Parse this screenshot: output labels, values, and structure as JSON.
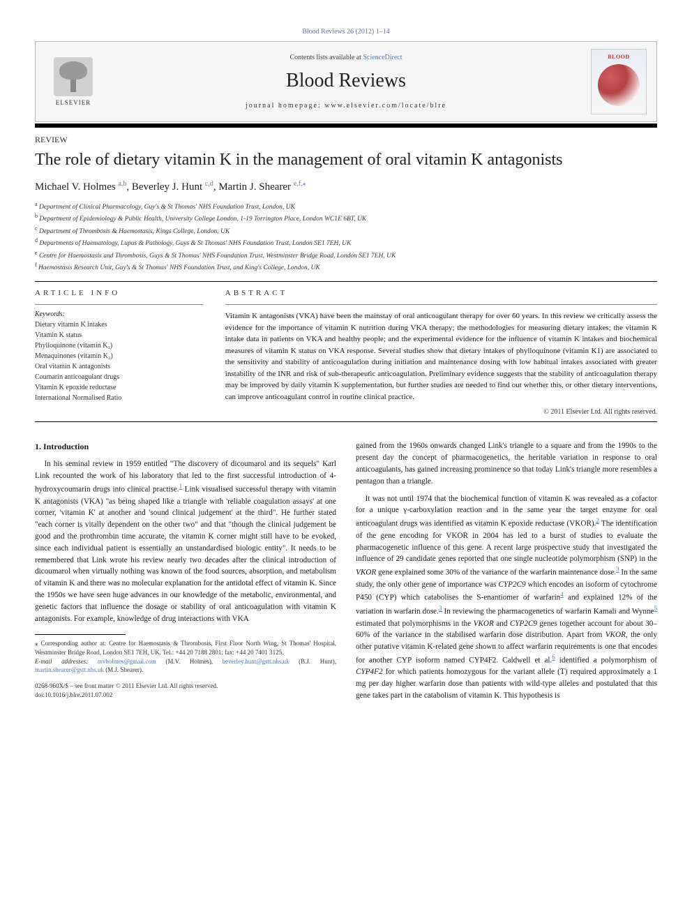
{
  "citation": "Blood Reviews 26 (2012) 1–14",
  "masthead": {
    "contents_prefix": "Contents lists available at ",
    "contents_link_text": "ScienceDirect",
    "journal_title": "Blood Reviews",
    "homepage_label": "journal homepage: www.elsevier.com/locate/blre",
    "publisher_label": "ELSEVIER",
    "cover_text": "BLOOD"
  },
  "article": {
    "type": "REVIEW",
    "title": "The role of dietary vitamin K in the management of oral vitamin K antagonists",
    "authors_html_parts": {
      "a1_name": "Michael V. Holmes",
      "a1_sup": "a,b",
      "a2_name": "Beverley J. Hunt",
      "a2_sup": "c,d",
      "a3_name": "Martin J. Shearer",
      "a3_sup": "e,f,",
      "a3_star": "⁎"
    },
    "affiliations": [
      {
        "key": "a",
        "text": "Department of Clinical Pharmacology, Guy's & St Thomas' NHS Foundation Trust, London, UK"
      },
      {
        "key": "b",
        "text": "Department of Epidemiology & Public Health, University College London, 1-19 Torrington Place, London WC1E 6BT, UK"
      },
      {
        "key": "c",
        "text": "Department of Thrombosis & Haemostasis, Kings College, London, UK"
      },
      {
        "key": "d",
        "text": "Departments of Haematology, Lupus & Pathology, Guys & St Thomas' NHS Foundation Trust, London SE1 7EH, UK"
      },
      {
        "key": "e",
        "text": "Centre for Haemostasis and Thrombosis, Guys & St Thomas' NHS Foundation Trust, Westminster Bridge Road, London SE1 7EH, UK"
      },
      {
        "key": "f",
        "text": "Haemostasis Research Unit, Guy's & St Thomas' NHS Foundation Trust, and King's College, London, UK"
      }
    ]
  },
  "info": {
    "heading": "ARTICLE INFO",
    "keywords_label": "Keywords:",
    "keywords": [
      "Dietary vitamin K intakes",
      "Vitamin K status",
      "Phylloquinone (vitamin K₁)",
      "Menaquinones (vitamin K₂)",
      "Oral vitamin K antagonists",
      "Coumarin anticoagulant drugs",
      "Vitamin K epoxide reductase",
      "International Normalised Ratio"
    ]
  },
  "abstract": {
    "heading": "ABSTRACT",
    "text": "Vitamin K antagonists (VKA) have been the mainstay of oral anticoagulant therapy for over 60 years. In this review we critically assess the evidence for the importance of vitamin K nutrition during VKA therapy; the methodologies for measuring dietary intakes; the vitamin K intake data in patients on VKA and healthy people; and the experimental evidence for the influence of vitamin K intakes and biochemical measures of vitamin K status on VKA response. Several studies show that dietary intakes of phylloquinone (vitamin K1) are associated to the sensitivity and stability of anticoagulation during initiation and maintenance dosing with low habitual intakes associated with greater instability of the INR and risk of sub-therapeutic anticoagulation. Preliminary evidence suggests that the stability of anticoagulation therapy may be improved by daily vitamin K supplementation, but further studies are needed to find out whether this, or other dietary interventions, can improve anticoagulant control in routine clinical practice.",
    "copyright": "© 2011 Elsevier Ltd. All rights reserved."
  },
  "body": {
    "section_number": "1.",
    "section_title": "Introduction",
    "p1": "In his seminal review in 1959 entitled \"The discovery of dicoumarol and its sequels\" Karl Link recounted the work of his laboratory that led to the first successful introduction of 4-hydroxycoumarin drugs into clinical practise.",
    "p1_ref": "1",
    "p1_cont": " Link visualised successful therapy with vitamin K antagonists (VKA) \"as being shaped like a triangle with 'reliable coagulation assays' at one corner, 'vitamin K' at another and 'sound clinical judgement' at the third\". He further stated \"each corner is vitally dependent on the other two\" and that \"though the clinical judgement be good and the prothrombin time accurate, the vitamin K corner might still have to be evoked, since each individual patient is essentially an unstandardised biologic entity\". It needs to be remembered that Link wrote his review nearly two decades after the clinical introduction of dicoumarol when virtually nothing was known of the food sources, absorption, and metabolism of vitamin K and there was no molecular explanation for the antidotal effect of vitamin K. Since the 1950s we have seen huge advances in our knowledge of the metabolic, environmental, and genetic factors that influence the dosage or stability of oral anticoagulation with vitamin K antagonists. For example, knowledge of drug interactions with VKA",
    "p2": "gained from the 1960s onwards changed Link's triangle to a square and from the 1990s to the present day the concept of pharmacogenetics, the heritable variation in response to oral anticoagulants, has gained increasing prominence so that today Link's triangle more resembles a pentagon than a triangle.",
    "p3a": "It was not until 1974 that the biochemical function of vitamin K was revealed as a cofactor for a unique γ-carboxylation reaction and in the same year the target enzyme for oral anticoagulant drugs was identified as vitamin K epoxide reductase (VKOR).",
    "p3_ref2": "2",
    "p3b": " The identification of the gene encoding for VKOR in 2004 has led to a burst of studies to evaluate the pharmacogenetic influence of this gene. A recent large prospective study that investigated the influence of 29 candidate genes reported that one single nucleotide polymorphism (SNP) in the ",
    "gene_vkor": "VKOR",
    "p3c": " gene explained some 30% of the variance of the warfarin maintenance dose.",
    "p3_ref3a": "3",
    "p3d": " In the same study, the only other gene of importance was ",
    "gene_cyp2c9": "CYP2C9",
    "p3e": " which encodes an isoform of cytochrome P450 (CYP) which catabolises the S-enantiomer of warfarin",
    "p3_ref4": "4",
    "p3f": " and explained 12% of the variation in warfarin dose.",
    "p3_ref3b": "3",
    "p3g": " In reviewing the pharmacogenetics of warfarin Kamali and Wynne",
    "p3_ref5": "5",
    "p3h": " estimated that polymorphisms in the ",
    "p3i": " and ",
    "p3j": " genes together account for about 30–60% of the variance in the stabilised warfarin dose distribution. Apart from ",
    "p3k": ", the only other putative vitamin K-related gene shown to affect warfarin requirements is one that encodes for another CYP isoform named CYP4F2. Caldwell et al.",
    "p3_ref6": "6",
    "p3l": " identified a polymorphism of ",
    "gene_cyp4f2": "CYP4F2",
    "p3m": " for which patients homozygous for the variant allele (T) required approximately a 1 mg per day higher warfarin dose than patients with wild-type alleles and postulated that this gene takes part in the catabolism of vitamin K. This hypothesis is"
  },
  "footnotes": {
    "corr_label": "⁎ Corresponding author at: Centre for Haemostasis & Thrombosis, First Floor North Wing, St Thomas' Hospital, Westminster Bridge Road, London SE1 7EH, UK. Tel.: +44 20 7188 2801; fax: +44 20 7401 3125.",
    "email_label": "E-mail addresses: ",
    "email1": "mvholmes@gmail.com",
    "email1_who": " (M.V. Holmes), ",
    "email2": "beverley.hunt@gstt.nhs.uk",
    "email2_who": " (B.J. Hunt), ",
    "email3": "martin.shearer@gstt.nhs.uk",
    "email3_who": " (M.J. Shearer)."
  },
  "bottom": {
    "issn_line": "0268-960X/$ – see front matter © 2011 Elsevier Ltd. All rights reserved.",
    "doi_line": "doi:10.1016/j.blre.2011.07.002"
  },
  "colors": {
    "link": "#5b7aa8",
    "rule": "#000000",
    "text": "#1a1a1a"
  }
}
